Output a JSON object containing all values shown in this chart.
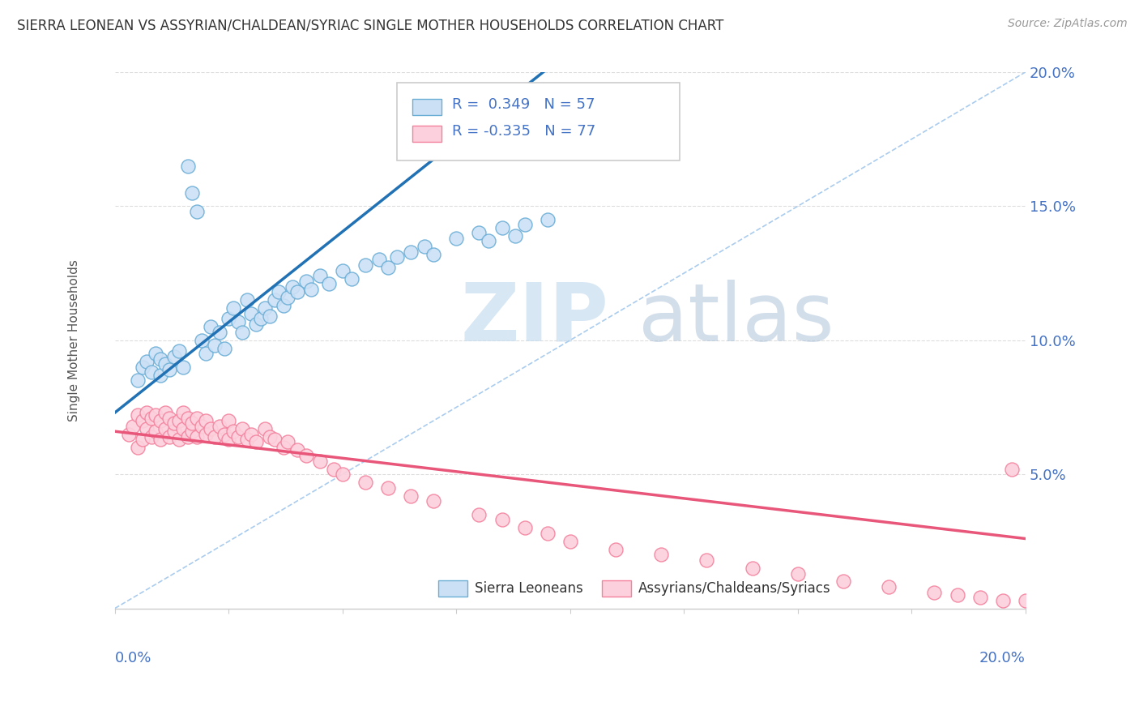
{
  "title": "SIERRA LEONEAN VS ASSYRIAN/CHALDEAN/SYRIAC SINGLE MOTHER HOUSEHOLDS CORRELATION CHART",
  "source": "Source: ZipAtlas.com",
  "ylabel": "Single Mother Households",
  "blue_R": 0.349,
  "blue_N": 57,
  "pink_R": -0.335,
  "pink_N": 77,
  "blue_color": "#cce0f5",
  "blue_edge_color": "#6aaed6",
  "blue_line_color": "#2171b5",
  "pink_color": "#fcd0dc",
  "pink_edge_color": "#f4829e",
  "pink_line_color": "#e8567a",
  "dashed_line_color": "#aaccee",
  "legend_text_color": "#4472c4",
  "watermark_zip_color": "#ccddef",
  "watermark_atlas_color": "#aabbcc",
  "background_color": "#ffffff",
  "grid_color": "#dddddd",
  "blue_scatter_x": [
    0.005,
    0.006,
    0.007,
    0.008,
    0.009,
    0.01,
    0.01,
    0.011,
    0.012,
    0.013,
    0.014,
    0.015,
    0.016,
    0.017,
    0.018,
    0.019,
    0.02,
    0.021,
    0.022,
    0.023,
    0.024,
    0.025,
    0.026,
    0.027,
    0.028,
    0.029,
    0.03,
    0.031,
    0.032,
    0.033,
    0.034,
    0.035,
    0.036,
    0.037,
    0.038,
    0.039,
    0.04,
    0.042,
    0.043,
    0.045,
    0.047,
    0.05,
    0.052,
    0.055,
    0.058,
    0.06,
    0.062,
    0.065,
    0.068,
    0.07,
    0.075,
    0.08,
    0.082,
    0.085,
    0.088,
    0.09,
    0.095
  ],
  "blue_scatter_y": [
    0.085,
    0.09,
    0.092,
    0.088,
    0.095,
    0.087,
    0.093,
    0.091,
    0.089,
    0.094,
    0.096,
    0.09,
    0.165,
    0.155,
    0.148,
    0.1,
    0.095,
    0.105,
    0.098,
    0.103,
    0.097,
    0.108,
    0.112,
    0.107,
    0.103,
    0.115,
    0.11,
    0.106,
    0.108,
    0.112,
    0.109,
    0.115,
    0.118,
    0.113,
    0.116,
    0.12,
    0.118,
    0.122,
    0.119,
    0.124,
    0.121,
    0.126,
    0.123,
    0.128,
    0.13,
    0.127,
    0.131,
    0.133,
    0.135,
    0.132,
    0.138,
    0.14,
    0.137,
    0.142,
    0.139,
    0.143,
    0.145
  ],
  "pink_scatter_x": [
    0.003,
    0.004,
    0.005,
    0.005,
    0.006,
    0.006,
    0.007,
    0.007,
    0.008,
    0.008,
    0.009,
    0.009,
    0.01,
    0.01,
    0.011,
    0.011,
    0.012,
    0.012,
    0.013,
    0.013,
    0.014,
    0.014,
    0.015,
    0.015,
    0.016,
    0.016,
    0.017,
    0.017,
    0.018,
    0.018,
    0.019,
    0.02,
    0.02,
    0.021,
    0.022,
    0.023,
    0.024,
    0.025,
    0.025,
    0.026,
    0.027,
    0.028,
    0.029,
    0.03,
    0.031,
    0.033,
    0.034,
    0.035,
    0.037,
    0.038,
    0.04,
    0.042,
    0.045,
    0.048,
    0.05,
    0.055,
    0.06,
    0.065,
    0.07,
    0.08,
    0.085,
    0.09,
    0.095,
    0.1,
    0.11,
    0.12,
    0.13,
    0.14,
    0.15,
    0.16,
    0.17,
    0.18,
    0.185,
    0.19,
    0.195,
    0.197,
    0.2
  ],
  "pink_scatter_y": [
    0.065,
    0.068,
    0.06,
    0.072,
    0.063,
    0.07,
    0.067,
    0.073,
    0.064,
    0.071,
    0.066,
    0.072,
    0.063,
    0.07,
    0.067,
    0.073,
    0.064,
    0.071,
    0.066,
    0.069,
    0.063,
    0.07,
    0.067,
    0.073,
    0.064,
    0.071,
    0.066,
    0.069,
    0.064,
    0.071,
    0.068,
    0.065,
    0.07,
    0.067,
    0.064,
    0.068,
    0.065,
    0.063,
    0.07,
    0.066,
    0.064,
    0.067,
    0.063,
    0.065,
    0.062,
    0.067,
    0.064,
    0.063,
    0.06,
    0.062,
    0.059,
    0.057,
    0.055,
    0.052,
    0.05,
    0.047,
    0.045,
    0.042,
    0.04,
    0.035,
    0.033,
    0.03,
    0.028,
    0.025,
    0.022,
    0.02,
    0.018,
    0.015,
    0.013,
    0.01,
    0.008,
    0.006,
    0.005,
    0.004,
    0.003,
    0.052,
    0.003
  ]
}
